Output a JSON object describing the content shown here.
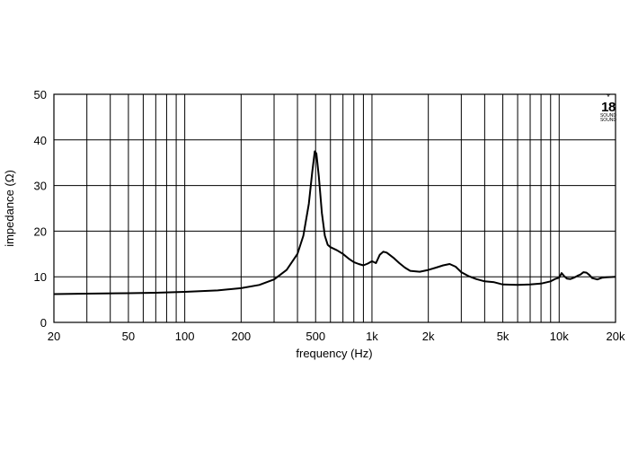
{
  "logo": {
    "star": "*",
    "number": "18",
    "line1": "SOUND",
    "line2": "SOUND"
  },
  "chart_data": {
    "type": "line",
    "xlabel": "frequency (Hz)",
    "ylabel": "impedance (Ω)",
    "xscale": "log",
    "xlim": [
      20,
      20000
    ],
    "ylim": [
      0,
      50
    ],
    "grid": true,
    "x_ticks": [
      {
        "value": 20,
        "label": "20"
      },
      {
        "value": 50,
        "label": "50"
      },
      {
        "value": 100,
        "label": "100"
      },
      {
        "value": 200,
        "label": "200"
      },
      {
        "value": 500,
        "label": "500"
      },
      {
        "value": 1000,
        "label": "1k"
      },
      {
        "value": 2000,
        "label": "2k"
      },
      {
        "value": 5000,
        "label": "5k"
      },
      {
        "value": 10000,
        "label": "10k"
      },
      {
        "value": 20000,
        "label": "20k"
      }
    ],
    "x_grid": [
      30,
      40,
      50,
      60,
      70,
      80,
      90,
      100,
      200,
      300,
      400,
      500,
      600,
      700,
      800,
      900,
      1000,
      2000,
      3000,
      4000,
      5000,
      6000,
      7000,
      8000,
      9000,
      10000
    ],
    "y_ticks": [
      0,
      10,
      20,
      30,
      40,
      50
    ],
    "series": [
      {
        "x": [
          20,
          30,
          50,
          70,
          100,
          150,
          200,
          250,
          300,
          350,
          400,
          430,
          460,
          480,
          495,
          505,
          520,
          540,
          560,
          580,
          600,
          650,
          700,
          750,
          800,
          850,
          900,
          950,
          1000,
          1050,
          1100,
          1150,
          1200,
          1300,
          1400,
          1500,
          1600,
          1800,
          2000,
          2200,
          2400,
          2600,
          2800,
          3000,
          3300,
          3600,
          4000,
          4500,
          5000,
          6000,
          7000,
          8000,
          9000,
          9500,
          10000,
          10300,
          10600,
          11000,
          11500,
          12000,
          12500,
          13000,
          13500,
          14000,
          14500,
          15000,
          16000,
          17000,
          18000,
          20000
        ],
        "y": [
          6.2,
          6.3,
          6.4,
          6.5,
          6.7,
          7.0,
          7.5,
          8.2,
          9.4,
          11.5,
          15.0,
          19.0,
          26.0,
          33.0,
          37.5,
          37.0,
          32.0,
          24.0,
          19.0,
          17.0,
          16.5,
          15.8,
          15.0,
          14.0,
          13.2,
          12.8,
          12.5,
          12.9,
          13.4,
          13.0,
          14.8,
          15.5,
          15.3,
          14.2,
          13.0,
          12.0,
          11.3,
          11.1,
          11.5,
          12.0,
          12.5,
          12.8,
          12.2,
          11.0,
          10.1,
          9.5,
          9.0,
          8.8,
          8.3,
          8.2,
          8.3,
          8.5,
          9.0,
          9.5,
          9.8,
          10.8,
          10.2,
          9.6,
          9.5,
          9.8,
          10.2,
          10.5,
          11.0,
          10.9,
          10.4,
          9.7,
          9.4,
          9.8,
          9.9,
          10.0
        ]
      }
    ]
  }
}
